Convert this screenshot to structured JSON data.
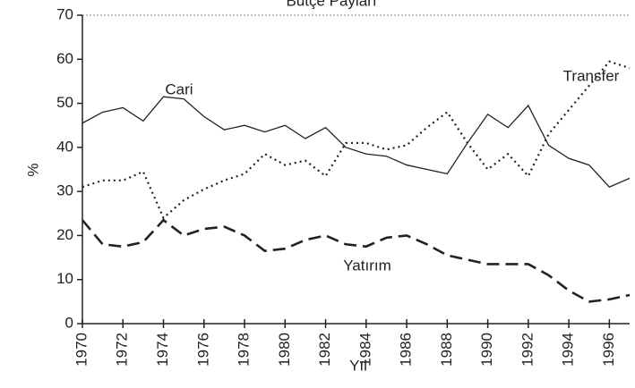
{
  "chart_data": {
    "type": "line",
    "title": "Bütçe Payları",
    "xlabel": "Yıl",
    "ylabel": "%",
    "x": [
      1970,
      1971,
      1972,
      1973,
      1974,
      1975,
      1976,
      1977,
      1978,
      1979,
      1980,
      1981,
      1982,
      1983,
      1984,
      1985,
      1986,
      1987,
      1988,
      1989,
      1990,
      1991,
      1992,
      1993,
      1994,
      1995,
      1996,
      1997
    ],
    "series": [
      {
        "name": "Cari",
        "color": "#222222",
        "style": "solid",
        "values": [
          45.5,
          48,
          49,
          46,
          51.5,
          51,
          47,
          44,
          45,
          43.5,
          45,
          42,
          44.5,
          40,
          38.5,
          38,
          36,
          35,
          34,
          41,
          47.5,
          44.5,
          49.5,
          40.5,
          37.5,
          36,
          31,
          33
        ]
      },
      {
        "name": "Transfer",
        "color": "#222222",
        "style": "dotted",
        "values": [
          31,
          32.5,
          32.5,
          34.5,
          24,
          28,
          30.5,
          32.5,
          34,
          38.5,
          36,
          37,
          33.5,
          41,
          41,
          39.5,
          40.5,
          44.5,
          48,
          41,
          35,
          38.5,
          33.5,
          43,
          48.5,
          54,
          59.5,
          58
        ]
      },
      {
        "name": "Yatırım",
        "color": "#222222",
        "style": "dashed",
        "values": [
          23.5,
          18,
          17.5,
          18.5,
          23.5,
          20,
          21.5,
          22,
          20,
          16.5,
          17,
          19,
          20,
          18,
          17.5,
          19.5,
          20,
          18,
          15.5,
          14.5,
          13.5,
          13.5,
          13.5,
          11,
          7.5,
          5,
          5.5,
          6.5
        ]
      }
    ],
    "xlim": [
      1970,
      1997
    ],
    "xticks": [
      1970,
      1972,
      1974,
      1976,
      1978,
      1980,
      1982,
      1984,
      1986,
      1988,
      1990,
      1992,
      1994,
      1996
    ],
    "ylim": [
      0,
      70
    ],
    "yticks": [
      0,
      10,
      20,
      30,
      40,
      50,
      60,
      70
    ]
  }
}
